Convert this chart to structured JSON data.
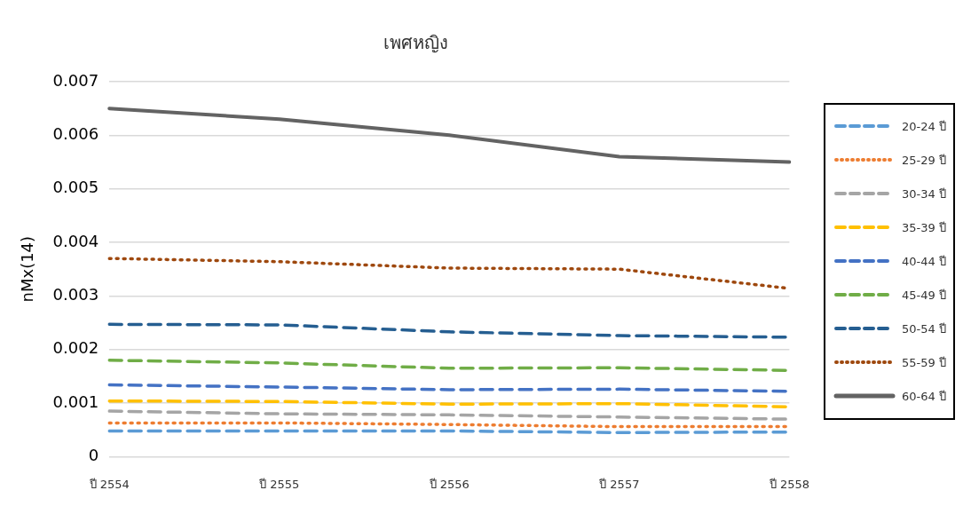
{
  "chart_data": {
    "type": "line",
    "title": "เพศหญิง",
    "ylabel": "nMx(14)",
    "categories": [
      "ปี 2554",
      "ปี 2555",
      "ปี 2556",
      "ปี 2557",
      "ปี 2558"
    ],
    "series": [
      {
        "name": "20-24 ปี",
        "color": "#5b9bd5",
        "line_style": "dashed",
        "values": [
          0.00048,
          0.00048,
          0.00048,
          0.00045,
          0.00046
        ]
      },
      {
        "name": "25-29 ปี",
        "color": "#ed7d31",
        "line_style": "dotted",
        "values": [
          0.00063,
          0.00063,
          0.0006,
          0.00056,
          0.00056
        ]
      },
      {
        "name": "30-34 ปี",
        "color": "#a5a5a5",
        "line_style": "dashed",
        "values": [
          0.00085,
          0.0008,
          0.00078,
          0.00074,
          0.0007
        ]
      },
      {
        "name": "35-39 ปี",
        "color": "#ffc000",
        "line_style": "dashed",
        "values": [
          0.00104,
          0.00103,
          0.00098,
          0.00099,
          0.00093
        ]
      },
      {
        "name": "40-44 ปี",
        "color": "#4472c4",
        "line_style": "dashed",
        "values": [
          0.00134,
          0.0013,
          0.00125,
          0.00126,
          0.00122
        ]
      },
      {
        "name": "45-49 ปี",
        "color": "#70ad47",
        "line_style": "dashed",
        "values": [
          0.0018,
          0.00175,
          0.00165,
          0.00166,
          0.00161
        ]
      },
      {
        "name": "50-54 ปี",
        "color": "#255e91",
        "line_style": "dashed",
        "values": [
          0.00247,
          0.00246,
          0.00233,
          0.00226,
          0.00223
        ]
      },
      {
        "name": "55-59 ปี",
        "color": "#9e480e",
        "line_style": "dotted",
        "values": [
          0.0037,
          0.00364,
          0.00352,
          0.0035,
          0.00314
        ]
      },
      {
        "name": "60-64 ปี",
        "color": "#636363",
        "line_style": "solid",
        "values": [
          0.0065,
          0.0063,
          0.006,
          0.0056,
          0.0055
        ]
      }
    ],
    "ylim": [
      0,
      0.007
    ],
    "yticks": [
      0,
      0.001,
      0.002,
      0.003,
      0.004,
      0.005,
      0.006,
      0.007
    ],
    "grid": "y",
    "legend": "right",
    "marker": "none"
  }
}
